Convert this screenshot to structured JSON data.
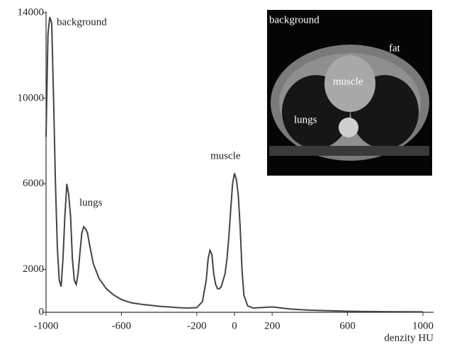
{
  "chart_data": {
    "type": "line",
    "x": [
      -1000,
      -990,
      -980,
      -970,
      -960,
      -950,
      -940,
      -930,
      -920,
      -910,
      -900,
      -890,
      -880,
      -870,
      -860,
      -850,
      -840,
      -830,
      -820,
      -810,
      -800,
      -790,
      -780,
      -770,
      -750,
      -720,
      -680,
      -640,
      -600,
      -550,
      -500,
      -450,
      -400,
      -350,
      -300,
      -250,
      -200,
      -170,
      -150,
      -140,
      -130,
      -120,
      -110,
      -100,
      -90,
      -80,
      -70,
      -60,
      -50,
      -40,
      -30,
      -20,
      -10,
      0,
      10,
      20,
      30,
      40,
      50,
      70,
      100,
      200,
      300,
      400,
      600,
      800,
      1000
    ],
    "values": [
      8200,
      13000,
      13800,
      13500,
      10000,
      6000,
      3000,
      1500,
      1200,
      2500,
      4500,
      6000,
      5500,
      4500,
      2500,
      1500,
      1300,
      1800,
      2800,
      3700,
      4000,
      3900,
      3700,
      3200,
      2300,
      1600,
      1100,
      800,
      600,
      450,
      380,
      330,
      280,
      250,
      220,
      200,
      220,
      500,
      1500,
      2500,
      2900,
      2700,
      1800,
      1300,
      1100,
      1100,
      1200,
      1500,
      1800,
      2500,
      3500,
      4800,
      6000,
      6500,
      6200,
      5500,
      4000,
      2000,
      800,
      300,
      200,
      250,
      150,
      100,
      50,
      30,
      20
    ],
    "color": "#444444",
    "xlim": [
      -1000,
      1050
    ],
    "xticks": [
      -1000,
      -600,
      -200,
      0,
      200,
      600,
      1000
    ],
    "ylim": [
      0,
      14000
    ],
    "yticks": [
      0,
      2000,
      6000,
      10000,
      14000
    ],
    "xlabel": "denzity HU",
    "annotations": [
      "background",
      "lungs",
      "muscle"
    ],
    "inset_labels": [
      "background",
      "fat",
      "muscle",
      "lungs"
    ]
  }
}
